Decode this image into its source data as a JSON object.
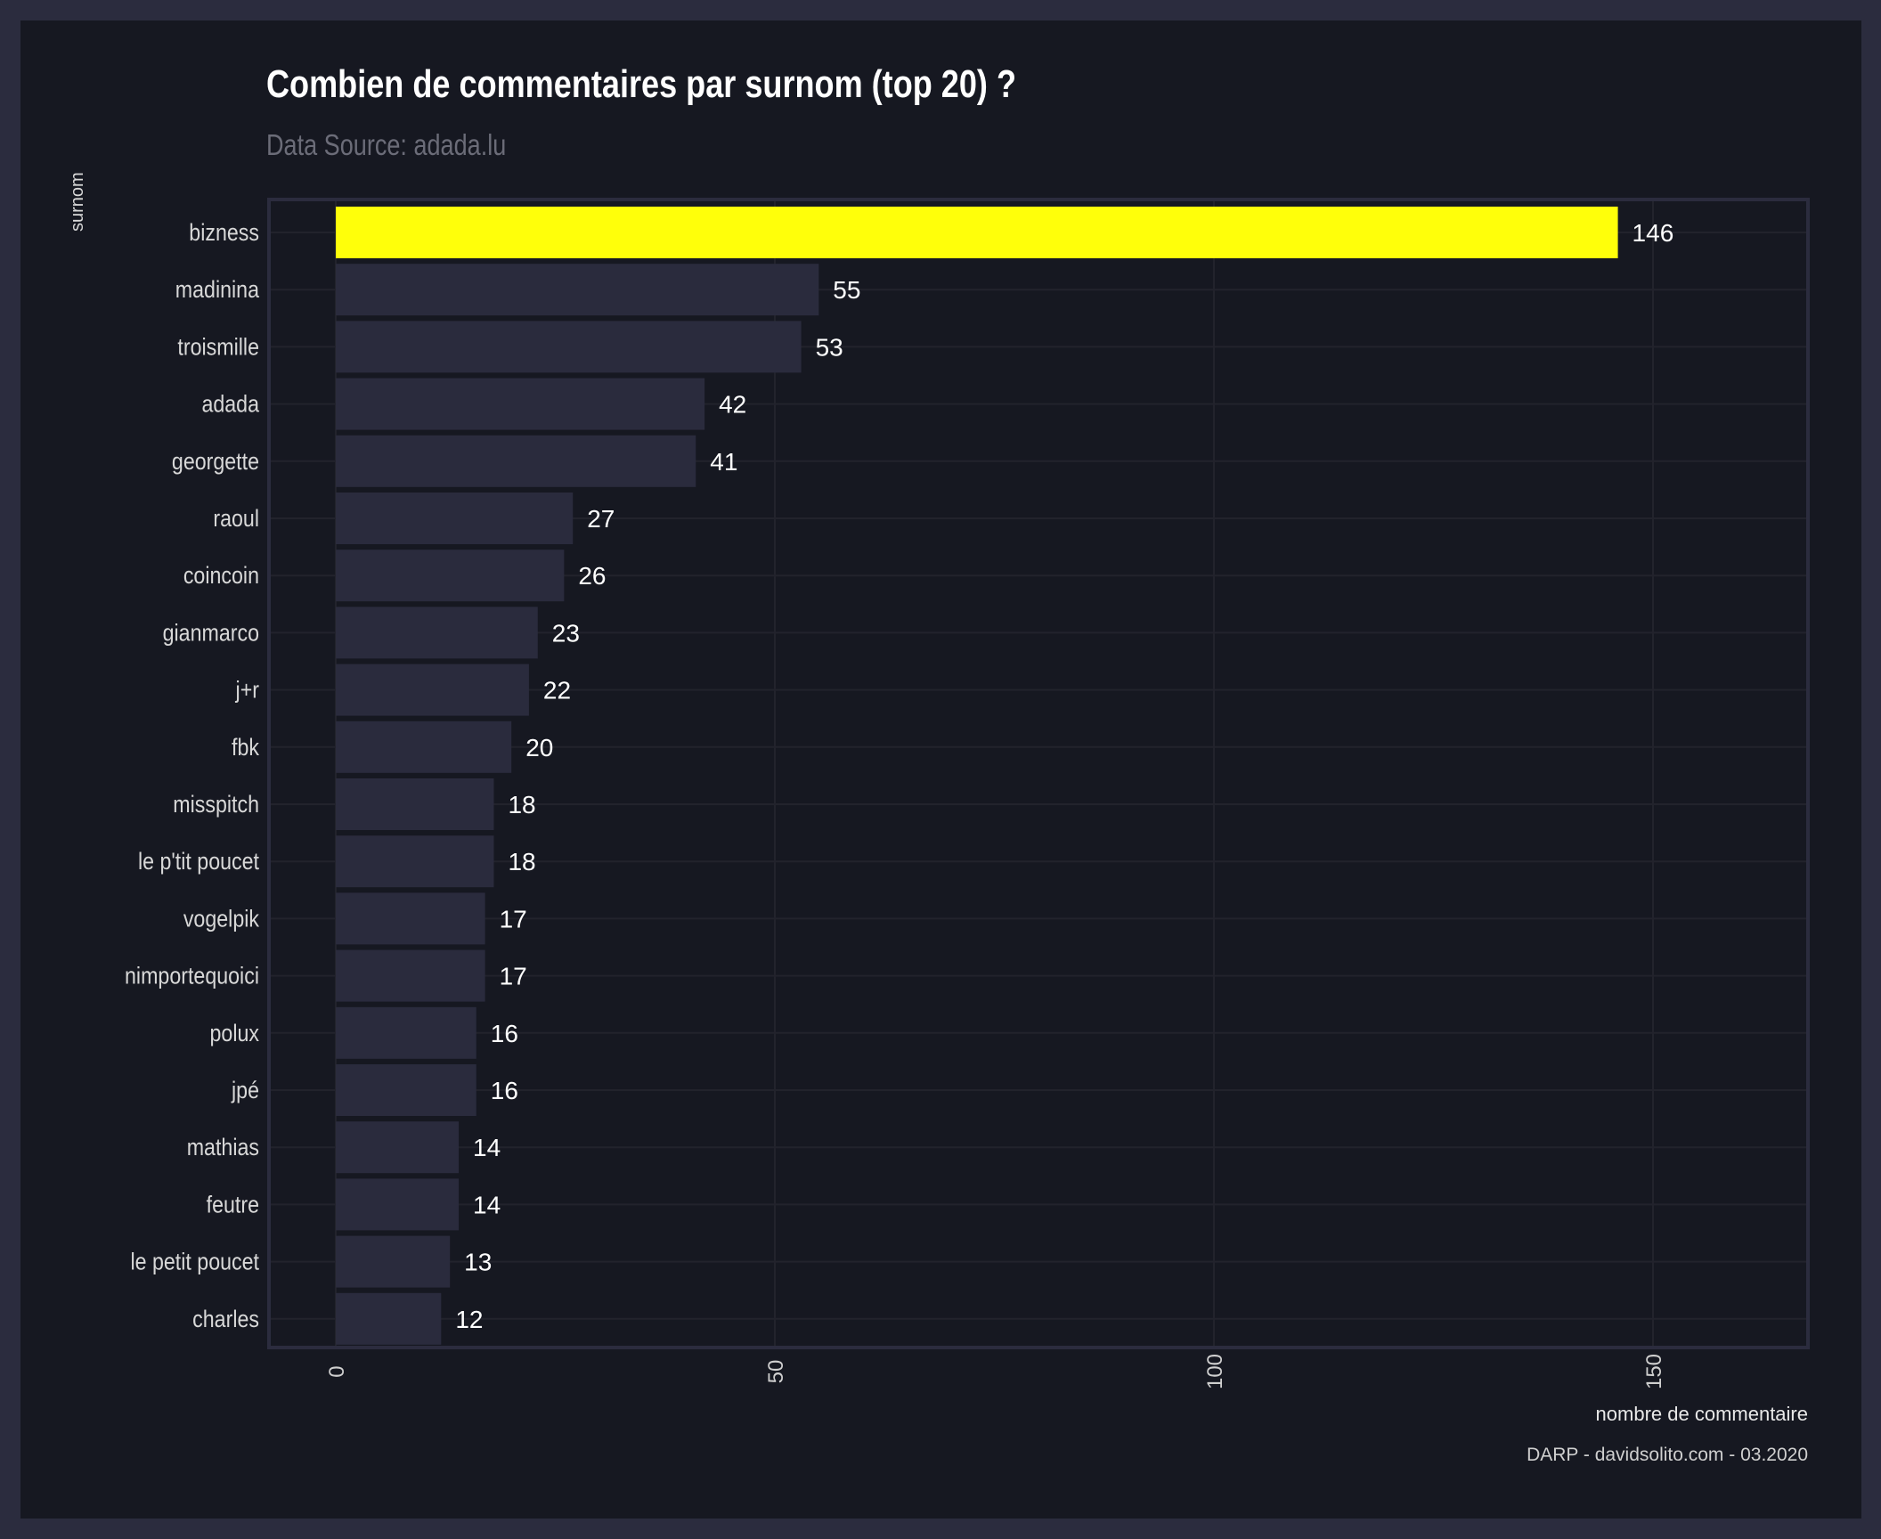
{
  "colors": {
    "highlight": "#ffff0a",
    "bar": "#2a2b3d",
    "background": "#161821",
    "frame": "#2b2c3e"
  },
  "chart_data": {
    "type": "bar",
    "orientation": "horizontal",
    "title": "Combien de commentaires par surnom (top 20) ?",
    "subtitle": "Data Source: adada.lu",
    "xlabel": "nombre de commentaire",
    "ylabel": "surnom",
    "caption": "DARP - davidsolito.com - 03.2020",
    "xlim": [
      0,
      167
    ],
    "xticks": [
      0,
      50,
      100,
      150
    ],
    "grid": true,
    "highlight_category": "bizness",
    "categories": [
      "bizness",
      "madinina",
      "troismille",
      "adada",
      "georgette",
      "raoul",
      "coincoin",
      "gianmarco",
      "j+r",
      "fbk",
      "misspitch",
      "le p'tit poucet",
      "vogelpik",
      "nimportequoici",
      "polux",
      "jpé",
      "mathias",
      "feutre",
      "le petit poucet",
      "charles"
    ],
    "values": [
      146,
      55,
      53,
      42,
      41,
      27,
      26,
      23,
      22,
      20,
      18,
      18,
      17,
      17,
      16,
      16,
      14,
      14,
      13,
      12
    ]
  }
}
